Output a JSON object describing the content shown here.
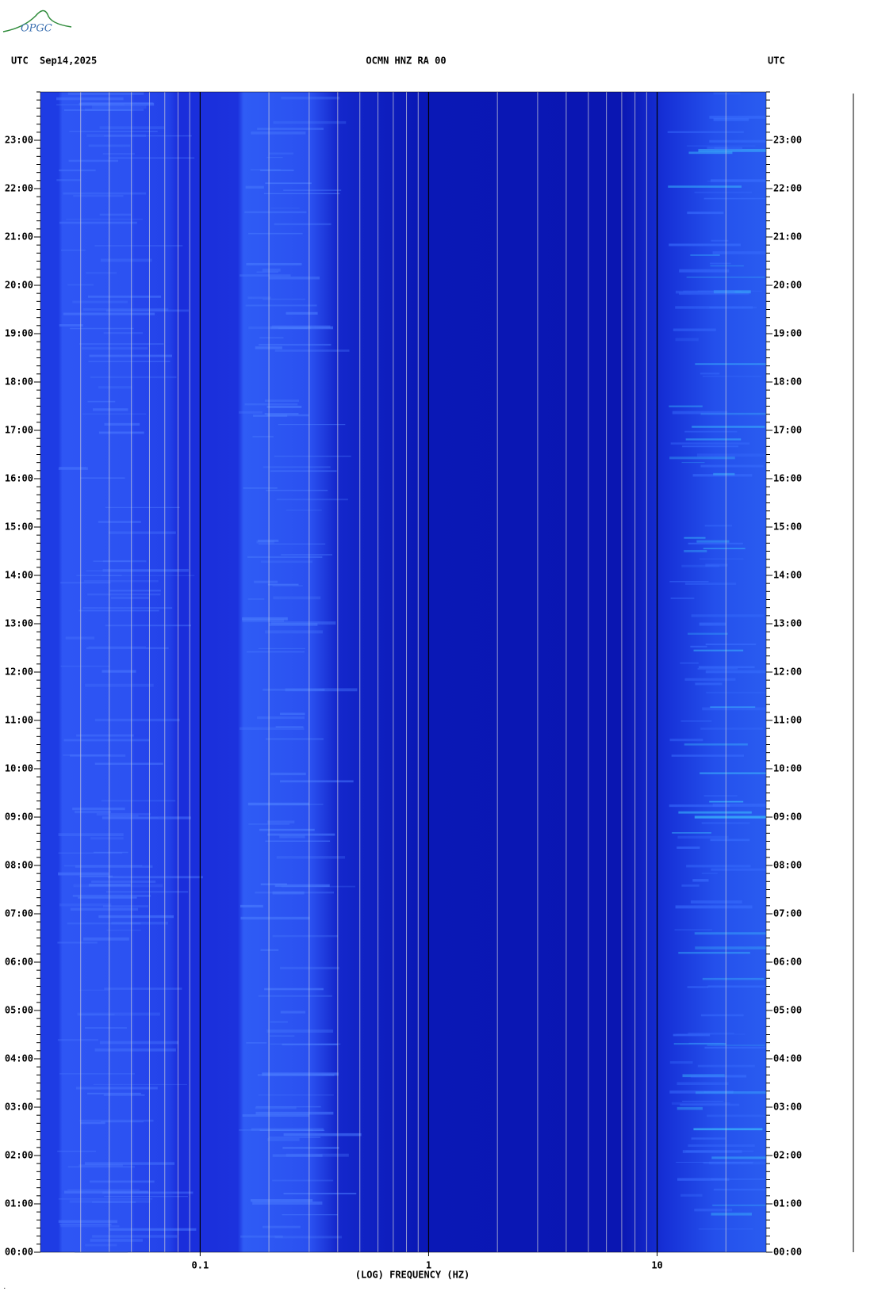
{
  "chart_data": {
    "type": "spectrogram",
    "logo_text": "OPGC",
    "header_left_zone": "UTC",
    "date": "Sep14,2025",
    "title": "OCMN HNZ RA 00",
    "header_right_zone": "UTC",
    "xlabel": "(LOG) FREQUENCY (HZ)",
    "xscale": "log",
    "xlim": [
      0.02,
      30
    ],
    "xticks": [
      0.1,
      1,
      10
    ],
    "xgrid": [
      0.03,
      0.04,
      0.05,
      0.06,
      0.07,
      0.08,
      0.09,
      0.2,
      0.3,
      0.4,
      0.5,
      0.6,
      0.7,
      0.8,
      0.9,
      2,
      3,
      4,
      5,
      6,
      7,
      8,
      9,
      20
    ],
    "ylim": [
      0,
      24
    ],
    "yticks": [
      {
        "value": 0,
        "label": "00:00"
      },
      {
        "value": 1,
        "label": "01:00"
      },
      {
        "value": 2,
        "label": "02:00"
      },
      {
        "value": 3,
        "label": "03:00"
      },
      {
        "value": 4,
        "label": "04:00"
      },
      {
        "value": 5,
        "label": "05:00"
      },
      {
        "value": 6,
        "label": "06:00"
      },
      {
        "value": 7,
        "label": "07:00"
      },
      {
        "value": 8,
        "label": "08:00"
      },
      {
        "value": 9,
        "label": "09:00"
      },
      {
        "value": 10,
        "label": "10:00"
      },
      {
        "value": 11,
        "label": "11:00"
      },
      {
        "value": 12,
        "label": "12:00"
      },
      {
        "value": 13,
        "label": "13:00"
      },
      {
        "value": 14,
        "label": "14:00"
      },
      {
        "value": 15,
        "label": "15:00"
      },
      {
        "value": 16,
        "label": "16:00"
      },
      {
        "value": 17,
        "label": "17:00"
      },
      {
        "value": 18,
        "label": "18:00"
      },
      {
        "value": 19,
        "label": "19:00"
      },
      {
        "value": 20,
        "label": "20:00"
      },
      {
        "value": 21,
        "label": "21:00"
      },
      {
        "value": 22,
        "label": "22:00"
      },
      {
        "value": 23,
        "label": "23:00"
      }
    ]
  }
}
